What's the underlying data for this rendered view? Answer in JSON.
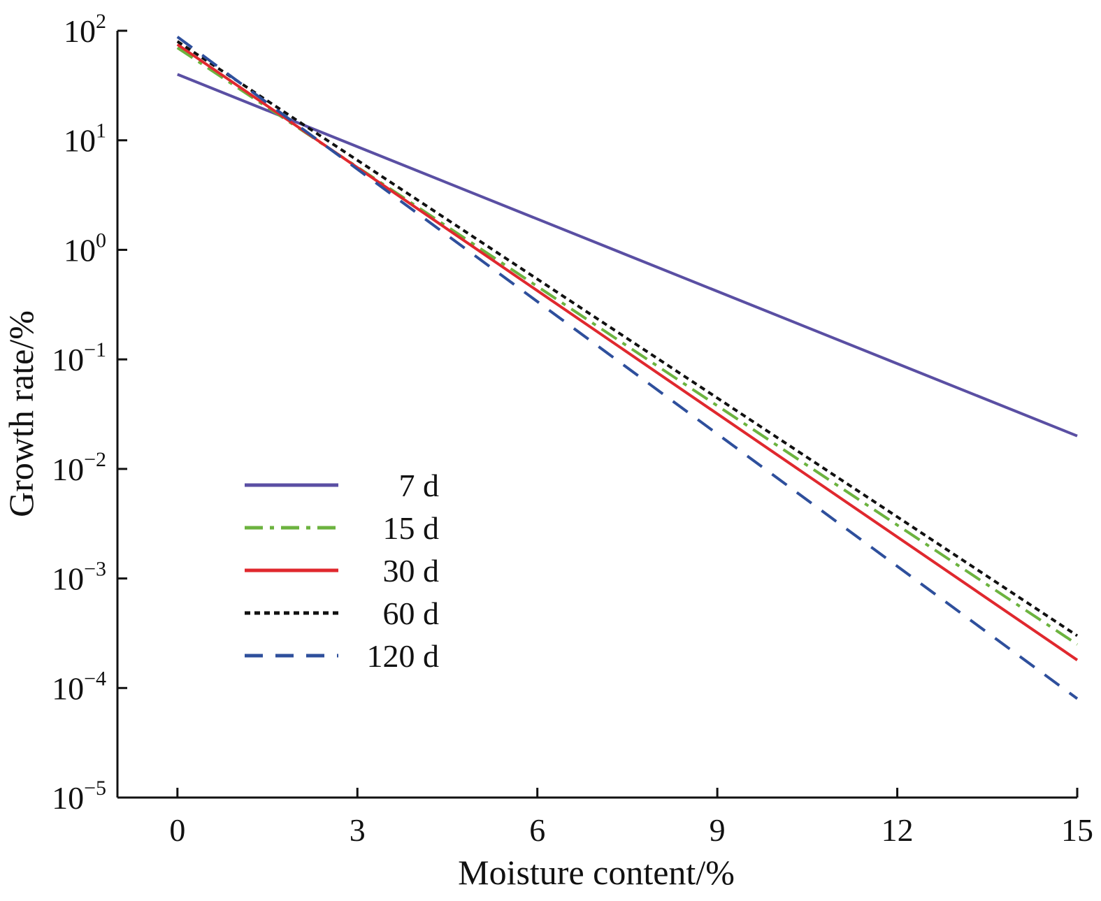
{
  "chart_data": {
    "type": "line",
    "xlabel": "Moisture content/%",
    "ylabel": "Growth rate/%",
    "xlim": [
      -1,
      15
    ],
    "ylim": [
      1e-05,
      100
    ],
    "y_scale": "log",
    "x_ticks": [
      "0",
      "3",
      "6",
      "9",
      "12",
      "15"
    ],
    "y_ticks": [
      {
        "base": "10",
        "exp": "−5"
      },
      {
        "base": "10",
        "exp": "−4"
      },
      {
        "base": "10",
        "exp": "−3"
      },
      {
        "base": "10",
        "exp": "−2"
      },
      {
        "base": "10",
        "exp": "−1"
      },
      {
        "base": "10",
        "exp": "0"
      },
      {
        "base": "10",
        "exp": "1"
      },
      {
        "base": "10",
        "exp": "2"
      }
    ],
    "legend_position": "lower-left",
    "grid": false,
    "series": [
      {
        "name": "7 d",
        "color": "#5a4fa3",
        "style": "solid",
        "x": [
          0,
          15
        ],
        "y": [
          40,
          0.02
        ]
      },
      {
        "name": "15 d",
        "color": "#6cb33f",
        "style": "dashdot",
        "x": [
          0,
          15
        ],
        "y": [
          70,
          0.00025
        ]
      },
      {
        "name": "30 d",
        "color": "#e0282e",
        "style": "solid",
        "x": [
          0,
          15
        ],
        "y": [
          75,
          0.00018
        ]
      },
      {
        "name": "60 d",
        "color": "#111111",
        "style": "dotted",
        "x": [
          0,
          15
        ],
        "y": [
          80,
          0.0003
        ]
      },
      {
        "name": "120 d",
        "color": "#2e4f9c",
        "style": "dashed",
        "x": [
          0,
          15
        ],
        "y": [
          88,
          8e-05
        ]
      }
    ]
  }
}
